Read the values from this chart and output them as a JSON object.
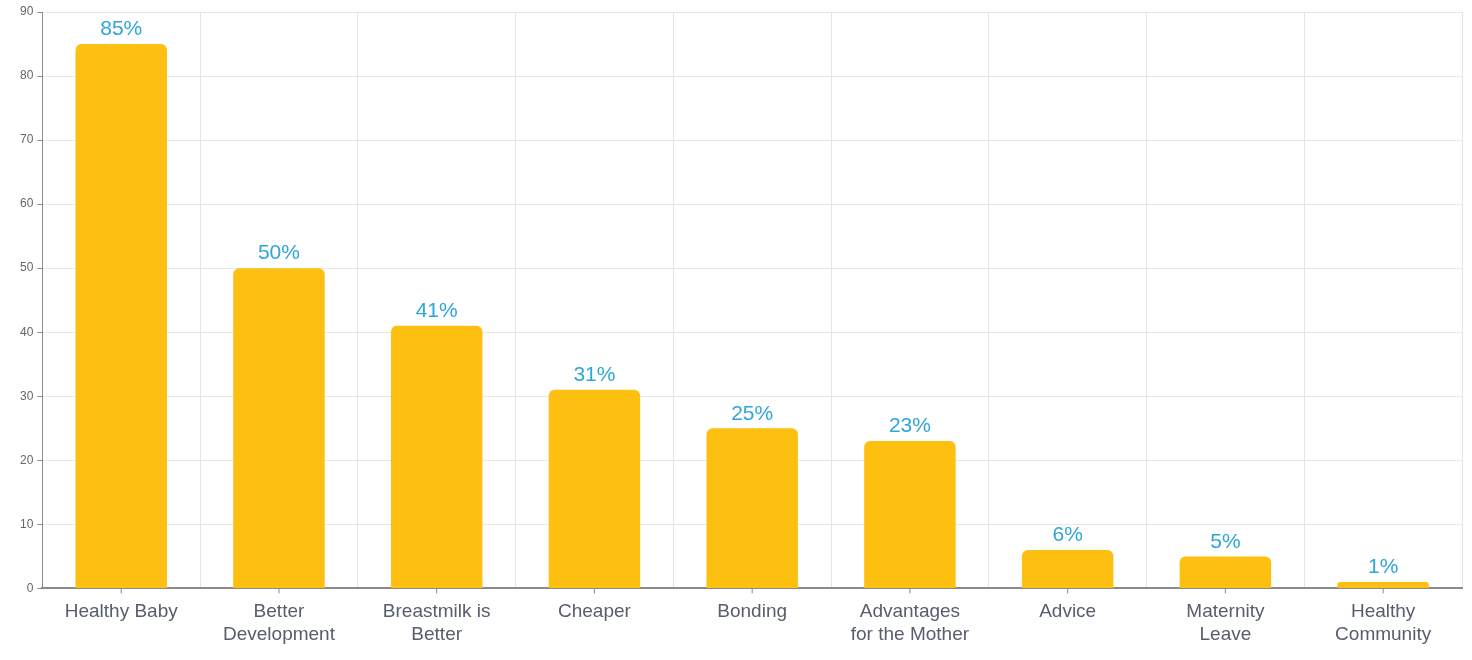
{
  "chart_data": {
    "type": "bar",
    "categories": [
      "Healthy Baby",
      "Better Development",
      "Breastmilk is Better",
      "Cheaper",
      "Bonding",
      "Advantages for the Mother",
      "Advice",
      "Maternity Leave",
      "Healthy Community"
    ],
    "values": [
      85,
      50,
      41,
      31,
      25,
      23,
      6,
      5,
      1
    ],
    "color": "#fdbf10",
    "value_labels": [
      "85%",
      "50%",
      "41%",
      "31%",
      "25%",
      "23%",
      "6%",
      "5%",
      "1%"
    ],
    "ylim": [
      0,
      90
    ],
    "yticks": [
      0,
      10,
      20,
      30,
      40,
      50,
      60,
      70,
      80,
      90
    ],
    "grid": true
  }
}
